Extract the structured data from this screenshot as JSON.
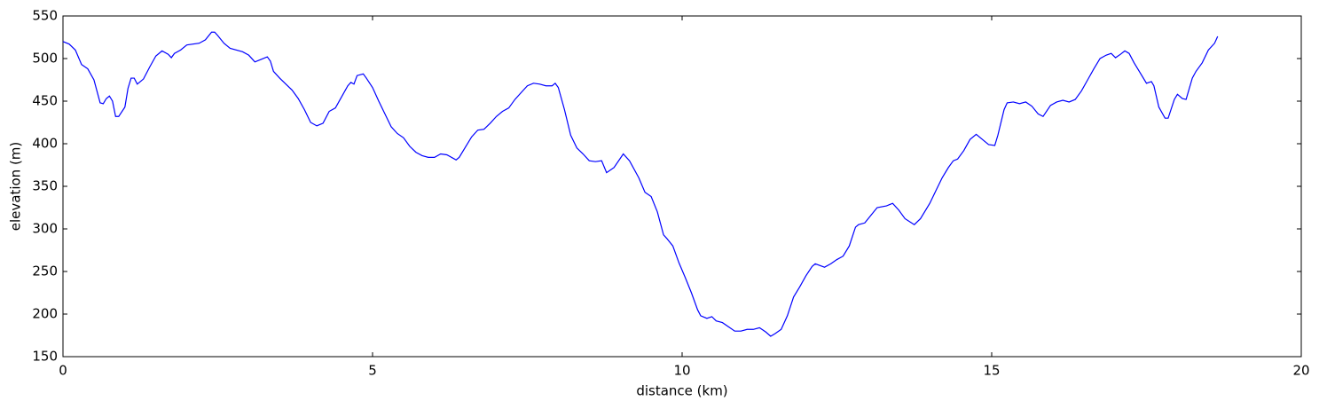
{
  "chart_data": {
    "type": "line",
    "x_label": "distance (km)",
    "y_label": "elevation (m)",
    "xlim": [
      0,
      20
    ],
    "xticks": [
      0,
      5,
      10,
      15,
      20
    ],
    "ylim": [
      150,
      550
    ],
    "yticks": [
      150,
      200,
      250,
      300,
      350,
      400,
      450,
      500,
      550
    ],
    "series": [
      {
        "color": "#0000ff",
        "x": [
          0,
          0.1,
          0.2,
          0.3,
          0.4,
          0.5,
          0.6,
          0.65,
          0.7,
          0.75,
          0.8,
          0.85,
          0.9,
          1.0,
          1.05,
          1.1,
          1.15,
          1.2,
          1.3,
          1.4,
          1.5,
          1.6,
          1.7,
          1.75,
          1.8,
          1.9,
          2.0,
          2.2,
          2.3,
          2.4,
          2.45,
          2.5,
          2.6,
          2.7,
          2.9,
          3.0,
          3.1,
          3.2,
          3.3,
          3.35,
          3.4,
          3.5,
          3.6,
          3.7,
          3.8,
          3.9,
          4.0,
          4.1,
          4.2,
          4.3,
          4.4,
          4.5,
          4.6,
          4.65,
          4.7,
          4.75,
          4.85,
          4.9,
          5.0,
          5.1,
          5.2,
          5.3,
          5.4,
          5.5,
          5.6,
          5.7,
          5.8,
          5.9,
          6.0,
          6.1,
          6.2,
          6.3,
          6.35,
          6.4,
          6.5,
          6.6,
          6.7,
          6.8,
          6.9,
          7.0,
          7.1,
          7.2,
          7.3,
          7.4,
          7.5,
          7.6,
          7.7,
          7.8,
          7.9,
          7.95,
          8.0,
          8.1,
          8.2,
          8.3,
          8.4,
          8.5,
          8.6,
          8.7,
          8.78,
          8.9,
          9.05,
          9.15,
          9.3,
          9.4,
          9.5,
          9.6,
          9.7,
          9.75,
          9.85,
          9.95,
          10.05,
          10.15,
          10.25,
          10.3,
          10.4,
          10.48,
          10.55,
          10.65,
          10.75,
          10.85,
          10.95,
          11.05,
          11.15,
          11.25,
          11.35,
          11.43,
          11.5,
          11.6,
          11.7,
          11.8,
          11.9,
          12.0,
          12.1,
          12.15,
          12.3,
          12.4,
          12.5,
          12.6,
          12.7,
          12.8,
          12.85,
          12.95,
          13.05,
          13.15,
          13.3,
          13.4,
          13.5,
          13.6,
          13.75,
          13.85,
          14.0,
          14.1,
          14.2,
          14.3,
          14.38,
          14.45,
          14.55,
          14.65,
          14.75,
          14.85,
          14.95,
          15.05,
          15.1,
          15.2,
          15.25,
          15.35,
          15.45,
          15.55,
          15.65,
          15.75,
          15.83,
          15.95,
          16.05,
          16.15,
          16.25,
          16.35,
          16.45,
          16.55,
          16.65,
          16.75,
          16.85,
          16.93,
          17.0,
          17.08,
          17.15,
          17.22,
          17.3,
          17.4,
          17.5,
          17.58,
          17.62,
          17.7,
          17.8,
          17.85,
          17.95,
          18.0,
          18.08,
          18.14,
          18.24,
          18.3,
          18.4,
          18.5,
          18.6,
          18.65
        ],
        "values": [
          520,
          517,
          510,
          493,
          488,
          475,
          448,
          447,
          453,
          456,
          450,
          432,
          432,
          443,
          465,
          477,
          477,
          470,
          476,
          490,
          503,
          509,
          505,
          501,
          506,
          510,
          516,
          518,
          522,
          531,
          531,
          527,
          518,
          512,
          508,
          504,
          496,
          499,
          502,
          497,
          485,
          477,
          470,
          463,
          453,
          440,
          425,
          421,
          424,
          438,
          442,
          455,
          468,
          472,
          470,
          480,
          482,
          477,
          466,
          450,
          435,
          420,
          412,
          407,
          397,
          390,
          386,
          384,
          384,
          388,
          387,
          383,
          381,
          384,
          396,
          408,
          416,
          417,
          424,
          432,
          438,
          442,
          452,
          460,
          468,
          471,
          470,
          468,
          468,
          471,
          466,
          440,
          410,
          395,
          388,
          380,
          379,
          380,
          366,
          372,
          388,
          380,
          360,
          343,
          338,
          320,
          293,
          289,
          280,
          260,
          243,
          225,
          205,
          198,
          195,
          197,
          192,
          190,
          185,
          180,
          180,
          182,
          182,
          184,
          179,
          174,
          177,
          182,
          198,
          220,
          232,
          245,
          256,
          259,
          255,
          259,
          264,
          268,
          280,
          302,
          305,
          307,
          316,
          325,
          327,
          330,
          322,
          312,
          305,
          312,
          330,
          345,
          360,
          372,
          380,
          382,
          392,
          405,
          411,
          405,
          399,
          398,
          410,
          440,
          448,
          449,
          447,
          449,
          444,
          435,
          432,
          445,
          449,
          451,
          449,
          452,
          462,
          475,
          488,
          500,
          504,
          506,
          501,
          505,
          509,
          506,
          495,
          483,
          471,
          473,
          468,
          443,
          430,
          430,
          452,
          458,
          453,
          452,
          477,
          485,
          495,
          510,
          518,
          526
        ]
      }
    ]
  }
}
